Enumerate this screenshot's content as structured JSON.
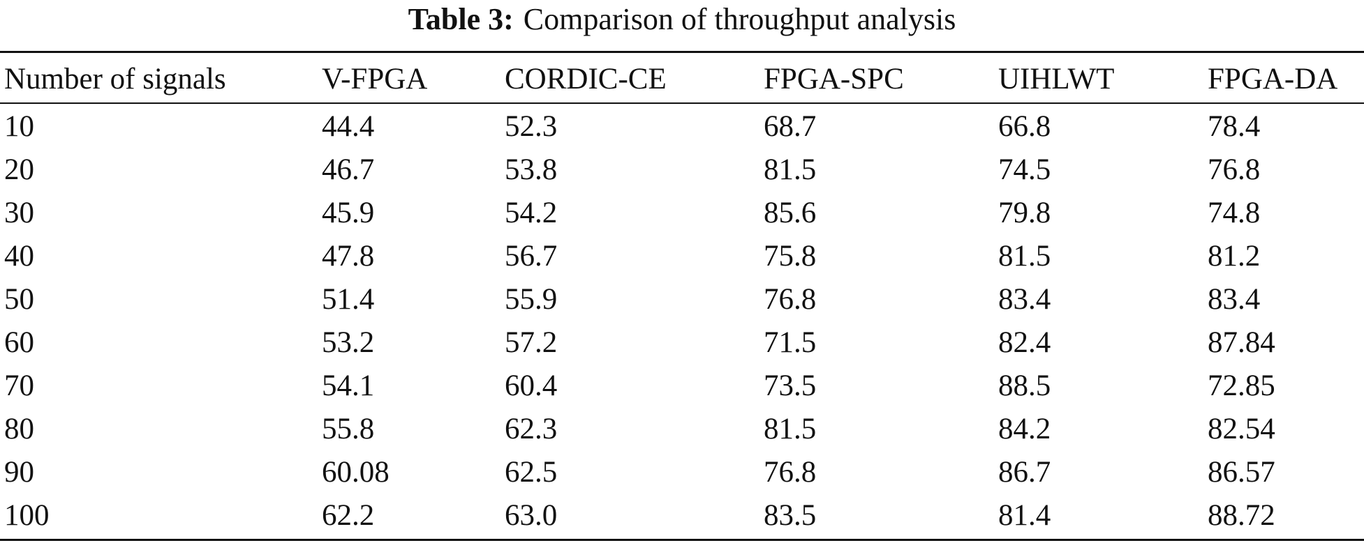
{
  "caption": {
    "label": "Table 3:",
    "text": "Comparison of throughput analysis"
  },
  "table": {
    "headers": [
      "Number of signals",
      "V-FPGA",
      "CORDIC-CE",
      "FPGA-SPC",
      "UIHLWT",
      "FPGA-DA"
    ],
    "rows": [
      [
        "10",
        "44.4",
        "52.3",
        "68.7",
        "66.8",
        "78.4"
      ],
      [
        "20",
        "46.7",
        "53.8",
        "81.5",
        "74.5",
        "76.8"
      ],
      [
        "30",
        "45.9",
        "54.2",
        "85.6",
        "79.8",
        "74.8"
      ],
      [
        "40",
        "47.8",
        "56.7",
        "75.8",
        "81.5",
        "81.2"
      ],
      [
        "50",
        "51.4",
        "55.9",
        "76.8",
        "83.4",
        "83.4"
      ],
      [
        "60",
        "53.2",
        "57.2",
        "71.5",
        "82.4",
        "87.84"
      ],
      [
        "70",
        "54.1",
        "60.4",
        "73.5",
        "88.5",
        "72.85"
      ],
      [
        "80",
        "55.8",
        "62.3",
        "81.5",
        "84.2",
        "82.54"
      ],
      [
        "90",
        "60.08",
        "62.5",
        "76.8",
        "86.7",
        "86.57"
      ],
      [
        "100",
        "62.2",
        "63.0",
        "83.5",
        "81.4",
        "88.72"
      ]
    ]
  }
}
